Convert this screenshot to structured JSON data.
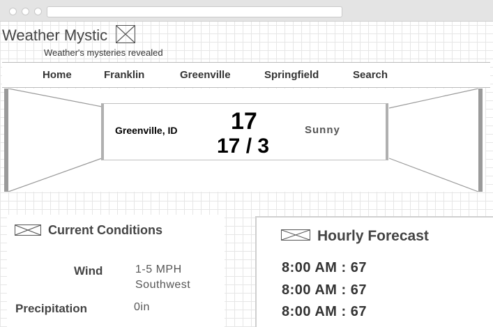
{
  "site": {
    "title": "Weather Mystic",
    "tagline": "Weather's mysteries revealed"
  },
  "nav": {
    "items": [
      "Home",
      "Franklin",
      "Greenville",
      "Springfield",
      "Search"
    ]
  },
  "hero": {
    "location": "Greenville, ID",
    "temperature": "17",
    "high_low": "17 / 3",
    "condition": "Sunny"
  },
  "current_conditions": {
    "title": "Current Conditions",
    "wind_label": "Wind",
    "wind_speed": "1-5 MPH",
    "wind_direction": "Southwest",
    "precipitation_label": "Precipitation",
    "precipitation_value": "0in"
  },
  "hourly_forecast": {
    "title": "Hourly Forecast",
    "rows": [
      "8:00 AM : 67",
      "8:00 AM : 67",
      "8:00 AM : 67"
    ]
  },
  "icons": {
    "placeholder": "image-placeholder-icon"
  }
}
